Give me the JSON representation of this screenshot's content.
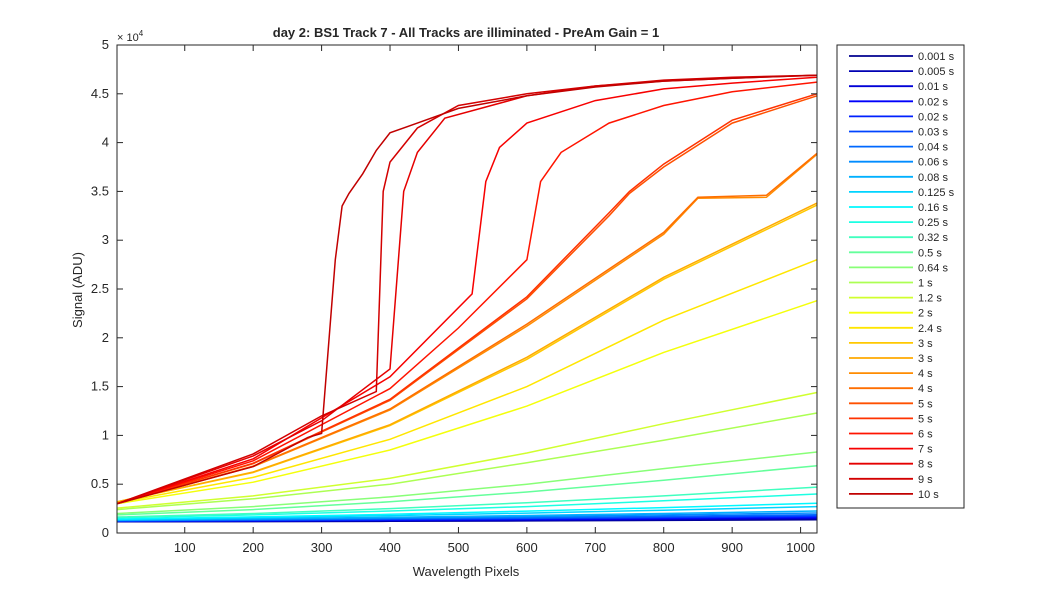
{
  "chart_data": {
    "type": "line",
    "title": "day 2: BS1  Track 7 - All Tracks are illiminated - PreAm Gain = 1",
    "xlabel": "Wavelength Pixels",
    "ylabel": "Signal (ADU)",
    "y_exponent_label": "× 10",
    "y_exponent_power": "4",
    "xlim": [
      1,
      1024
    ],
    "ylim": [
      0,
      50000
    ],
    "x_ticks": [
      100,
      200,
      300,
      400,
      500,
      600,
      700,
      800,
      900,
      1000
    ],
    "x_tick_labels": [
      "100",
      "200",
      "300",
      "400",
      "500",
      "600",
      "700",
      "800",
      "900",
      "1000"
    ],
    "y_ticks": [
      0,
      5000,
      10000,
      15000,
      20000,
      25000,
      30000,
      35000,
      40000,
      45000,
      50000
    ],
    "y_tick_labels": [
      "0",
      "0.5",
      "1",
      "1.5",
      "2",
      "2.5",
      "3",
      "3.5",
      "4",
      "4.5",
      "5"
    ],
    "grid": false,
    "legend_position": "outside-right",
    "series": [
      {
        "name": "0.001 s",
        "color": "#00008f",
        "x": [
          1,
          200,
          400,
          600,
          800,
          1024
        ],
        "y": [
          1150,
          1170,
          1200,
          1240,
          1290,
          1350
        ]
      },
      {
        "name": "0.005 s",
        "color": "#0000b3",
        "x": [
          1,
          200,
          400,
          600,
          800,
          1024
        ],
        "y": [
          1170,
          1200,
          1240,
          1290,
          1360,
          1440
        ]
      },
      {
        "name": "0.01 s",
        "color": "#0000d7",
        "x": [
          1,
          200,
          400,
          600,
          800,
          1024
        ],
        "y": [
          1190,
          1230,
          1280,
          1340,
          1420,
          1520
        ]
      },
      {
        "name": "0.02 s",
        "color": "#0000fb",
        "x": [
          1,
          200,
          400,
          600,
          800,
          1024
        ],
        "y": [
          1210,
          1260,
          1320,
          1400,
          1500,
          1620
        ]
      },
      {
        "name": "0.02 s",
        "color": "#0020ff",
        "x": [
          1,
          200,
          400,
          600,
          800,
          1024
        ],
        "y": [
          1220,
          1280,
          1350,
          1440,
          1550,
          1680
        ]
      },
      {
        "name": "0.03 s",
        "color": "#0044ff",
        "x": [
          1,
          200,
          400,
          600,
          800,
          1024
        ],
        "y": [
          1240,
          1310,
          1400,
          1500,
          1620,
          1760
        ]
      },
      {
        "name": "0.04 s",
        "color": "#0068ff",
        "x": [
          1,
          200,
          400,
          600,
          800,
          1024
        ],
        "y": [
          1260,
          1350,
          1450,
          1570,
          1710,
          1870
        ]
      },
      {
        "name": "0.06 s",
        "color": "#008cff",
        "x": [
          1,
          200,
          400,
          600,
          800,
          1024
        ],
        "y": [
          1290,
          1400,
          1530,
          1680,
          1850,
          2050
        ]
      },
      {
        "name": "0.08 s",
        "color": "#00b0ff",
        "x": [
          1,
          200,
          400,
          600,
          800,
          1024
        ],
        "y": [
          1320,
          1450,
          1610,
          1790,
          2000,
          2250
        ]
      },
      {
        "name": "0.125 s",
        "color": "#00d4ff",
        "x": [
          1,
          200,
          400,
          600,
          800,
          1024
        ],
        "y": [
          1380,
          1560,
          1780,
          2040,
          2340,
          2700
        ]
      },
      {
        "name": "0.16 s",
        "color": "#00f8ff",
        "x": [
          1,
          200,
          400,
          600,
          800,
          1024
        ],
        "y": [
          1430,
          1650,
          1920,
          2240,
          2600,
          3050
        ]
      },
      {
        "name": "0.25 s",
        "color": "#1cffe3",
        "x": [
          1,
          200,
          400,
          600,
          800,
          1024
        ],
        "y": [
          1550,
          1850,
          2250,
          2700,
          3300,
          4000
        ]
      },
      {
        "name": "0.32 s",
        "color": "#40ffbf",
        "x": [
          1,
          200,
          400,
          600,
          800,
          1024
        ],
        "y": [
          1640,
          2000,
          2500,
          3100,
          3800,
          4700
        ]
      },
      {
        "name": "0.5 s",
        "color": "#64ff9b",
        "x": [
          1,
          200,
          400,
          600,
          800,
          1024
        ],
        "y": [
          1850,
          2400,
          3200,
          4200,
          5400,
          6900
        ]
      },
      {
        "name": "0.64 s",
        "color": "#88ff77",
        "x": [
          1,
          200,
          400,
          600,
          800,
          1024
        ],
        "y": [
          2000,
          2700,
          3700,
          5000,
          6600,
          8300
        ]
      },
      {
        "name": "1 s",
        "color": "#acff53",
        "x": [
          1,
          200,
          400,
          600,
          800,
          1024
        ],
        "y": [
          2400,
          3500,
          5000,
          7200,
          9500,
          12300
        ]
      },
      {
        "name": "1.2 s",
        "color": "#d0ff2f",
        "x": [
          1,
          200,
          400,
          600,
          800,
          1024
        ],
        "y": [
          2550,
          3800,
          5600,
          8200,
          11200,
          14400
        ]
      },
      {
        "name": "2 s",
        "color": "#f4ff0b",
        "x": [
          1,
          200,
          400,
          600,
          800,
          1024
        ],
        "y": [
          3000,
          5200,
          8500,
          13000,
          18500,
          23800
        ]
      },
      {
        "name": "2.4 s",
        "color": "#ffe600",
        "x": [
          1,
          200,
          400,
          600,
          800,
          1024
        ],
        "y": [
          3100,
          5700,
          9600,
          15000,
          21800,
          28000
        ]
      },
      {
        "name": "3 s",
        "color": "#ffc800",
        "x": [
          1,
          200,
          400,
          600,
          800,
          1024
        ],
        "y": [
          3200,
          6200,
          11000,
          17800,
          26000,
          33600
        ]
      },
      {
        "name": "3 s",
        "color": "#ffaa00",
        "x": [
          1,
          200,
          400,
          600,
          800,
          1024
        ],
        "y": [
          3200,
          6250,
          11100,
          18000,
          26200,
          33800
        ]
      },
      {
        "name": "4 s",
        "color": "#ff8c00",
        "x": [
          1,
          200,
          400,
          600,
          800,
          850,
          950,
          1024
        ],
        "y": [
          3000,
          6800,
          12600,
          21200,
          30600,
          34300,
          34400,
          38800
        ]
      },
      {
        "name": "4 s",
        "color": "#ff6e00",
        "x": [
          1,
          200,
          400,
          600,
          800,
          850,
          950,
          1024
        ],
        "y": [
          3000,
          6850,
          12700,
          21400,
          30800,
          34400,
          34600,
          38900
        ]
      },
      {
        "name": "5 s",
        "color": "#ff5000",
        "x": [
          1,
          200,
          400,
          600,
          720,
          750,
          800,
          900,
          1024
        ],
        "y": [
          3000,
          7100,
          13600,
          24000,
          32500,
          34800,
          37500,
          42000,
          44800
        ]
      },
      {
        "name": "5 s",
        "color": "#ff3200",
        "x": [
          1,
          200,
          400,
          600,
          720,
          750,
          800,
          900,
          1024
        ],
        "y": [
          3000,
          7150,
          13700,
          24200,
          32800,
          35000,
          37800,
          42300,
          45000
        ]
      },
      {
        "name": "6 s",
        "color": "#ff1400",
        "x": [
          1,
          200,
          400,
          500,
          600,
          620,
          650,
          720,
          800,
          900,
          1024
        ],
        "y": [
          3000,
          7400,
          14800,
          21000,
          28000,
          36000,
          39000,
          42000,
          43800,
          45200,
          46200
        ]
      },
      {
        "name": "7 s",
        "color": "#f70000",
        "x": [
          1,
          200,
          400,
          520,
          540,
          560,
          600,
          700,
          800,
          900,
          1024
        ],
        "y": [
          3000,
          7600,
          16000,
          24500,
          36000,
          39500,
          42000,
          44300,
          45500,
          46100,
          46700
        ]
      },
      {
        "name": "8 s",
        "color": "#e50000",
        "x": [
          1,
          200,
          300,
          400,
          420,
          440,
          480,
          600,
          700,
          800,
          900,
          1024
        ],
        "y": [
          3000,
          7900,
          11500,
          16800,
          35000,
          39000,
          42500,
          44800,
          45800,
          46300,
          46600,
          46900
        ]
      },
      {
        "name": "9 s",
        "color": "#d30000",
        "x": [
          1,
          200,
          300,
          380,
          390,
          400,
          440,
          500,
          600,
          700,
          800,
          900,
          1024
        ],
        "y": [
          3000,
          8100,
          12000,
          14500,
          35000,
          38000,
          41500,
          43800,
          45000,
          45800,
          46400,
          46700,
          46900
        ]
      },
      {
        "name": "10 s",
        "color": "#c10000",
        "x": [
          1,
          200,
          280,
          300,
          320,
          330,
          340,
          360,
          380,
          400,
          440,
          500,
          600,
          700,
          800,
          900,
          1024
        ],
        "y": [
          3000,
          6800,
          9800,
          10200,
          28000,
          33500,
          34800,
          36800,
          39200,
          41000,
          42000,
          43500,
          44800,
          45700,
          46300,
          46600,
          46900
        ]
      }
    ]
  }
}
